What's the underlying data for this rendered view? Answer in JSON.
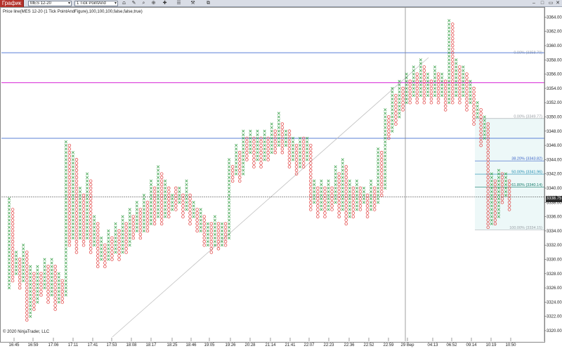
{
  "toolbar": {
    "chart_tab": "График",
    "instrument": "MES 12-20",
    "chart_type": "1 Tick PointAnd",
    "icons": [
      "bar-style-icon",
      "draw-tool-icon",
      "zoom-icon",
      "crosshair-icon",
      "properties-icon",
      "strategies-icon",
      "indicators-icon",
      "window-linking-icon"
    ],
    "window_buttons": [
      "minimize-icon",
      "maximize-icon",
      "close-icon"
    ]
  },
  "indicator_label": "Price line(MES 12-20 (1 Tick PointAndFigure),100,100,100,false,false,true)",
  "copyright": "© 2020 NinjaTrader, LLC",
  "current_price": "3338.75",
  "colors": {
    "x_column": "#2e9b3f",
    "o_column": "#e03a3a",
    "horizontal_line_blue": "#5b7fd6",
    "horizontal_line_magenta": "#d61fd6",
    "fib_line": "#1e8bb0",
    "fib_zone": "#e9f6f6",
    "trend_line": "#bfbfbf",
    "current_price_line": "#555555"
  },
  "chart_data": {
    "type": "point-and-figure",
    "title": "",
    "xlabel": "",
    "ylabel": "",
    "ylim": [
      3319,
      3366
    ],
    "y_ticks": [
      "3364.00",
      "3362.00",
      "3360.00",
      "3358.00",
      "3356.00",
      "3354.00",
      "3352.00",
      "3350.00",
      "3348.00",
      "3346.00",
      "3344.00",
      "3342.00",
      "3340.00",
      "3338.00",
      "3336.00",
      "3334.00",
      "3332.00",
      "3330.00",
      "3328.00",
      "3326.00",
      "3324.00",
      "3322.00",
      "3320.00"
    ],
    "x_labels": [
      "16:45",
      "16:59",
      "17:06",
      "17:11",
      "17:41",
      "17:53",
      "18:08",
      "18:17",
      "18:25",
      "18:46",
      "19:05",
      "19:26",
      "20:28",
      "21:14",
      "21:41",
      "22:07",
      "22:23",
      "22:36",
      "22:52",
      "22:59",
      "29 Вер",
      "04:13",
      "06:52",
      "09:14",
      "10:19",
      "10:50"
    ],
    "columns": [
      {
        "type": "X",
        "low": 3326,
        "high": 3338.5
      },
      {
        "type": "O",
        "low": 3327,
        "high": 3337
      },
      {
        "type": "X",
        "low": 3328,
        "high": 3331
      },
      {
        "type": "O",
        "low": 3326,
        "high": 3330
      },
      {
        "type": "X",
        "low": 3327,
        "high": 3332
      },
      {
        "type": "O",
        "low": 3321.5,
        "high": 3331
      },
      {
        "type": "X",
        "low": 3322,
        "high": 3329
      },
      {
        "type": "O",
        "low": 3323,
        "high": 3328
      },
      {
        "type": "X",
        "low": 3324,
        "high": 3329
      },
      {
        "type": "O",
        "low": 3325,
        "high": 3328
      },
      {
        "type": "X",
        "low": 3326,
        "high": 3330
      },
      {
        "type": "O",
        "low": 3324,
        "high": 3329
      },
      {
        "type": "X",
        "low": 3325,
        "high": 3330
      },
      {
        "type": "O",
        "low": 3323,
        "high": 3329
      },
      {
        "type": "X",
        "low": 3324,
        "high": 3328
      },
      {
        "type": "O",
        "low": 3324,
        "high": 3327
      },
      {
        "type": "X",
        "low": 3325,
        "high": 3346.5
      },
      {
        "type": "O",
        "low": 3332,
        "high": 3346
      },
      {
        "type": "X",
        "low": 3333,
        "high": 3345
      },
      {
        "type": "O",
        "low": 3331,
        "high": 3344
      },
      {
        "type": "X",
        "low": 3333,
        "high": 3340
      },
      {
        "type": "O",
        "low": 3332,
        "high": 3339
      },
      {
        "type": "X",
        "low": 3333,
        "high": 3342
      },
      {
        "type": "O",
        "low": 3331,
        "high": 3341
      },
      {
        "type": "X",
        "low": 3332,
        "high": 3336
      },
      {
        "type": "O",
        "low": 3329,
        "high": 3335
      },
      {
        "type": "X",
        "low": 3330,
        "high": 3333
      },
      {
        "type": "O",
        "low": 3329,
        "high": 3332
      },
      {
        "type": "X",
        "low": 3330,
        "high": 3334
      },
      {
        "type": "O",
        "low": 3330,
        "high": 3333
      },
      {
        "type": "X",
        "low": 3331,
        "high": 3335
      },
      {
        "type": "O",
        "low": 3330,
        "high": 3334
      },
      {
        "type": "X",
        "low": 3331,
        "high": 3336
      },
      {
        "type": "O",
        "low": 3331,
        "high": 3335
      },
      {
        "type": "X",
        "low": 3332,
        "high": 3337
      },
      {
        "type": "O",
        "low": 3333,
        "high": 3336
      },
      {
        "type": "X",
        "low": 3334,
        "high": 3338
      },
      {
        "type": "O",
        "low": 3333,
        "high": 3337
      },
      {
        "type": "X",
        "low": 3334,
        "high": 3339
      },
      {
        "type": "O",
        "low": 3334,
        "high": 3338
      },
      {
        "type": "X",
        "low": 3335,
        "high": 3341
      },
      {
        "type": "O",
        "low": 3335,
        "high": 3340
      },
      {
        "type": "X",
        "low": 3336,
        "high": 3343
      },
      {
        "type": "O",
        "low": 3335,
        "high": 3342
      },
      {
        "type": "X",
        "low": 3336,
        "high": 3341
      },
      {
        "type": "O",
        "low": 3336,
        "high": 3340
      },
      {
        "type": "X",
        "low": 3337,
        "high": 3339
      },
      {
        "type": "O",
        "low": 3337,
        "high": 3340
      },
      {
        "type": "X",
        "low": 3338,
        "high": 3340
      },
      {
        "type": "O",
        "low": 3336,
        "high": 3339
      },
      {
        "type": "X",
        "low": 3337,
        "high": 3341
      },
      {
        "type": "O",
        "low": 3335,
        "high": 3339
      },
      {
        "type": "X",
        "low": 3336,
        "high": 3338
      },
      {
        "type": "O",
        "low": 3334,
        "high": 3337
      },
      {
        "type": "X",
        "low": 3334,
        "high": 3337
      },
      {
        "type": "O",
        "low": 3332,
        "high": 3336
      },
      {
        "type": "X",
        "low": 3332,
        "high": 3335
      },
      {
        "type": "O",
        "low": 3331,
        "high": 3335
      },
      {
        "type": "X",
        "low": 3332,
        "high": 3336
      },
      {
        "type": "O",
        "low": 3331.5,
        "high": 3335
      },
      {
        "type": "X",
        "low": 3332,
        "high": 3335
      },
      {
        "type": "O",
        "low": 3332,
        "high": 3335
      },
      {
        "type": "X",
        "low": 3333,
        "high": 3344
      },
      {
        "type": "O",
        "low": 3341,
        "high": 3343
      },
      {
        "type": "X",
        "low": 3342,
        "high": 3346
      },
      {
        "type": "O",
        "low": 3341,
        "high": 3345
      },
      {
        "type": "X",
        "low": 3342,
        "high": 3348
      },
      {
        "type": "O",
        "low": 3344,
        "high": 3347
      },
      {
        "type": "X",
        "low": 3345,
        "high": 3348
      },
      {
        "type": "O",
        "low": 3343,
        "high": 3347
      },
      {
        "type": "X",
        "low": 3344,
        "high": 3348
      },
      {
        "type": "O",
        "low": 3343,
        "high": 3347
      },
      {
        "type": "X",
        "low": 3344,
        "high": 3348
      },
      {
        "type": "O",
        "low": 3344,
        "high": 3347
      },
      {
        "type": "X",
        "low": 3345,
        "high": 3349
      },
      {
        "type": "O",
        "low": 3345,
        "high": 3348
      },
      {
        "type": "X",
        "low": 3346,
        "high": 3350.5
      },
      {
        "type": "O",
        "low": 3345,
        "high": 3349
      },
      {
        "type": "X",
        "low": 3346,
        "high": 3348
      },
      {
        "type": "O",
        "low": 3343,
        "high": 3348
      },
      {
        "type": "X",
        "low": 3344,
        "high": 3347
      },
      {
        "type": "O",
        "low": 3342,
        "high": 3346
      },
      {
        "type": "X",
        "low": 3343,
        "high": 3347
      },
      {
        "type": "O",
        "low": 3343,
        "high": 3347
      },
      {
        "type": "X",
        "low": 3344,
        "high": 3347
      },
      {
        "type": "O",
        "low": 3337,
        "high": 3346
      },
      {
        "type": "X",
        "low": 3338,
        "high": 3341
      },
      {
        "type": "O",
        "low": 3336,
        "high": 3340
      },
      {
        "type": "X",
        "low": 3337,
        "high": 3341
      },
      {
        "type": "O",
        "low": 3336,
        "high": 3340
      },
      {
        "type": "X",
        "low": 3337,
        "high": 3341
      },
      {
        "type": "O",
        "low": 3337,
        "high": 3340
      },
      {
        "type": "X",
        "low": 3338,
        "high": 3343
      },
      {
        "type": "O",
        "low": 3336,
        "high": 3342
      },
      {
        "type": "X",
        "low": 3337,
        "high": 3344
      },
      {
        "type": "O",
        "low": 3335,
        "high": 3343
      },
      {
        "type": "X",
        "low": 3336,
        "high": 3341
      },
      {
        "type": "O",
        "low": 3336,
        "high": 3340
      },
      {
        "type": "X",
        "low": 3337,
        "high": 3341
      },
      {
        "type": "O",
        "low": 3337,
        "high": 3340
      },
      {
        "type": "X",
        "low": 3338,
        "high": 3340
      },
      {
        "type": "O",
        "low": 3336,
        "high": 3339
      },
      {
        "type": "X",
        "low": 3337,
        "high": 3341
      },
      {
        "type": "O",
        "low": 3337,
        "high": 3340
      },
      {
        "type": "X",
        "low": 3338,
        "high": 3345.5
      },
      {
        "type": "O",
        "low": 3339,
        "high": 3345
      },
      {
        "type": "X",
        "low": 3340,
        "high": 3351
      },
      {
        "type": "O",
        "low": 3347,
        "high": 3350
      },
      {
        "type": "X",
        "low": 3348,
        "high": 3354
      },
      {
        "type": "O",
        "low": 3349,
        "high": 3353
      },
      {
        "type": "X",
        "low": 3350,
        "high": 3355
      },
      {
        "type": "O",
        "low": 3351,
        "high": 3354
      },
      {
        "type": "X",
        "low": 3352,
        "high": 3356
      },
      {
        "type": "O",
        "low": 3352,
        "high": 3355
      },
      {
        "type": "X",
        "low": 3353,
        "high": 3357
      },
      {
        "type": "O",
        "low": 3352,
        "high": 3356
      },
      {
        "type": "X",
        "low": 3353,
        "high": 3358
      },
      {
        "type": "O",
        "low": 3352,
        "high": 3357
      },
      {
        "type": "X",
        "low": 3353,
        "high": 3356
      },
      {
        "type": "O",
        "low": 3352,
        "high": 3355
      },
      {
        "type": "X",
        "low": 3353,
        "high": 3357
      },
      {
        "type": "O",
        "low": 3352,
        "high": 3356
      },
      {
        "type": "X",
        "low": 3353,
        "high": 3356
      },
      {
        "type": "O",
        "low": 3351,
        "high": 3355
      },
      {
        "type": "X",
        "low": 3352,
        "high": 3363.5
      },
      {
        "type": "O",
        "low": 3352,
        "high": 3363
      },
      {
        "type": "X",
        "low": 3353,
        "high": 3358
      },
      {
        "type": "O",
        "low": 3352,
        "high": 3357
      },
      {
        "type": "X",
        "low": 3353,
        "high": 3357
      },
      {
        "type": "O",
        "low": 3351,
        "high": 3356
      },
      {
        "type": "X",
        "low": 3352,
        "high": 3355
      },
      {
        "type": "O",
        "low": 3349,
        "high": 3354
      },
      {
        "type": "X",
        "low": 3350,
        "high": 3352
      },
      {
        "type": "O",
        "low": 3346,
        "high": 3351
      },
      {
        "type": "X",
        "low": 3347,
        "high": 3350
      },
      {
        "type": "O",
        "low": 3334.5,
        "high": 3349
      },
      {
        "type": "X",
        "low": 3335,
        "high": 3342
      },
      {
        "type": "O",
        "low": 3335,
        "high": 3341
      },
      {
        "type": "X",
        "low": 3336,
        "high": 3342.5
      },
      {
        "type": "O",
        "low": 3338,
        "high": 3342
      },
      {
        "type": "X",
        "low": 3339,
        "high": 3342
      },
      {
        "type": "O",
        "low": 3337,
        "high": 3341
      }
    ],
    "horizontal_lines": [
      {
        "price": 3359,
        "color": "#5b7fd6"
      },
      {
        "price": 3354.8,
        "color": "#d61fd6"
      },
      {
        "price": 3347,
        "color": "#5b7fd6"
      }
    ],
    "current_price": 3338.75,
    "fibonacci": {
      "levels": [
        {
          "label": "0.00% (3358.70)",
          "price": 3358.7,
          "color": "#9aa0a6"
        },
        {
          "label": "0.00% (3349.77)",
          "price": 3349.77,
          "color": "#9aa0a6"
        },
        {
          "label": "38.20% (3343.82)",
          "price": 3343.82,
          "color": "#3a62c7"
        },
        {
          "label": "50.00% (3341.96)",
          "price": 3341.96,
          "color": "#1e8bb0"
        },
        {
          "label": "61.80% (3340.14)",
          "price": 3340.14,
          "color": "#137a6a"
        },
        {
          "label": "100.00% (3334.15)",
          "price": 3334.15,
          "color": "#9aa0a6"
        }
      ]
    }
  }
}
